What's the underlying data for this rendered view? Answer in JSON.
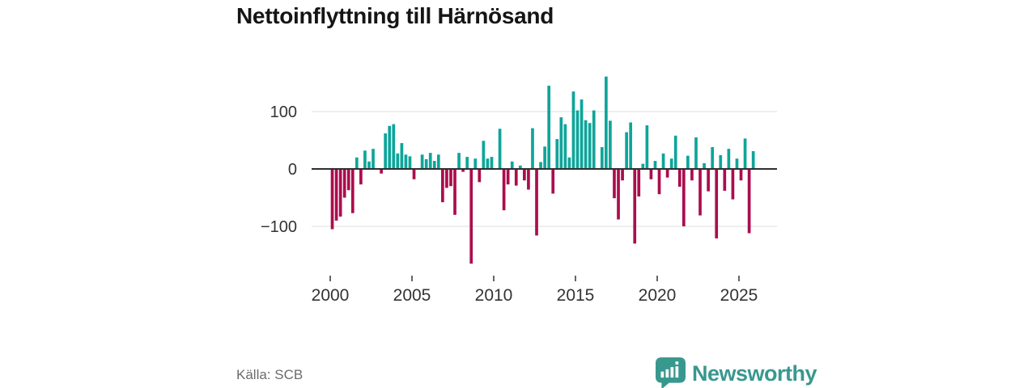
{
  "title": "Nettoinflyttning till Härnösand",
  "source": "Källa: SCB",
  "brand": {
    "name": "Newsworthy",
    "icon": "bar-chart-speech-bubble-icon",
    "color": "#38988e"
  },
  "colors": {
    "positive": "#0ea59a",
    "negative": "#ab0d4e",
    "axis": "#2e2e2e",
    "gridline": "#e4e4e4",
    "tick_label": "#333333",
    "title_text": "#151515",
    "source_text": "#6b6b6b",
    "background": "#ffffff"
  },
  "chart_data": {
    "type": "bar",
    "title": "Nettoinflyttning till Härnösand",
    "x_start": "2000-Q1",
    "frequency": "quarterly",
    "values": [
      -105,
      -90,
      -83,
      -50,
      -37,
      -77,
      20,
      -27,
      32,
      13,
      35,
      0,
      -8,
      62,
      75,
      78,
      27,
      45,
      25,
      22,
      -18,
      0,
      25,
      17,
      28,
      14,
      25,
      -58,
      -33,
      -30,
      -80,
      28,
      -5,
      21,
      -165,
      18,
      -23,
      49,
      18,
      21,
      0,
      70,
      -72,
      -27,
      13,
      -29,
      6,
      -20,
      -36,
      71,
      -116,
      12,
      39,
      145,
      -43,
      52,
      90,
      78,
      20,
      135,
      102,
      121,
      85,
      80,
      102,
      0,
      38,
      161,
      84,
      -51,
      -88,
      -20,
      64,
      81,
      -130,
      -48,
      9,
      76,
      -18,
      14,
      -44,
      27,
      -15,
      18,
      58,
      -31,
      -100,
      23,
      -20,
      55,
      -81,
      10,
      -39,
      38,
      -121,
      24,
      -38,
      35,
      -53,
      18,
      -20,
      53,
      -112,
      31
    ],
    "xtick_years": [
      2000,
      2005,
      2010,
      2015,
      2020,
      2025
    ],
    "xtick_labels": [
      "2000",
      "2005",
      "2010",
      "2015",
      "2020",
      "2025"
    ],
    "yticks": [
      100,
      0,
      -100
    ],
    "ytick_labels": [
      "100",
      "0",
      "−100"
    ],
    "ylim": [
      -180,
      175
    ],
    "grid": "horizontal",
    "legend": "none"
  }
}
